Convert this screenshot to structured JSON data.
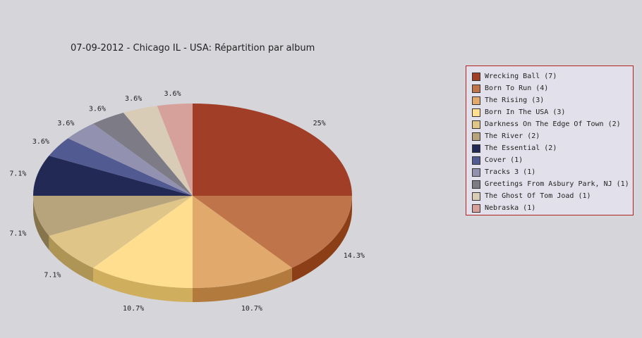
{
  "chart_data": {
    "type": "pie",
    "title": "07-09-2012 - Chicago IL - USA:  Répartition par album",
    "legend_placement": "right",
    "slices": [
      {
        "name": "Wrecking Ball",
        "value": 7,
        "label": "Wrecking Ball (7)",
        "pct": "25%",
        "color": "#a13e28",
        "side": "#6b0d04"
      },
      {
        "name": "Born To Run",
        "value": 4,
        "label": "Born To Run (4)",
        "pct": "14.3%",
        "color": "#c0744a",
        "side": "#8c3e17"
      },
      {
        "name": "The Rising",
        "value": 3,
        "label": "The Rising (3)",
        "pct": "10.7%",
        "color": "#e1aa6c",
        "side": "#b27a3c"
      },
      {
        "name": "Born In The USA",
        "value": 3,
        "label": "Born In The USA (3)",
        "pct": "10.7%",
        "color": "#ffdf8f",
        "side": "#cfae5e"
      },
      {
        "name": "Darkness On The Edge Of Town",
        "value": 2,
        "label": "Darkness On The Edge Of Town (2)",
        "pct": "7.1%",
        "color": "#dfc588",
        "side": "#ae9556"
      },
      {
        "name": "The River",
        "value": 2,
        "label": "The River (2)",
        "pct": "7.1%",
        "color": "#b7a47c",
        "side": "#86744d"
      },
      {
        "name": "The Essential",
        "value": 2,
        "label": "The Essential (2)",
        "pct": "7.1%",
        "color": "#222955",
        "side": "#111633"
      },
      {
        "name": "Cover",
        "value": 1,
        "label": "Cover (1)",
        "pct": "3.6%",
        "color": "#525a92",
        "side": "#2c3366"
      },
      {
        "name": "Tracks 3",
        "value": 1,
        "label": "Tracks 3 (1)",
        "pct": "3.6%",
        "color": "#9292b0",
        "side": "#63637f"
      },
      {
        "name": "Greetings From Asbury Park, NJ",
        "value": 1,
        "label": "Greetings From Asbury Park, NJ (1)",
        "pct": "3.6%",
        "color": "#7d7c86",
        "side": "#55545c"
      },
      {
        "name": "The Ghost Of Tom Joad",
        "value": 1,
        "label": "The Ghost Of Tom Joad (1)",
        "pct": "3.6%",
        "color": "#d8ccb6",
        "side": "#a89c86"
      },
      {
        "name": "Nebraska",
        "value": 1,
        "label": "Nebraska (1)",
        "pct": "3.6%",
        "color": "#d7a19b",
        "side": "#a6716b"
      }
    ]
  }
}
